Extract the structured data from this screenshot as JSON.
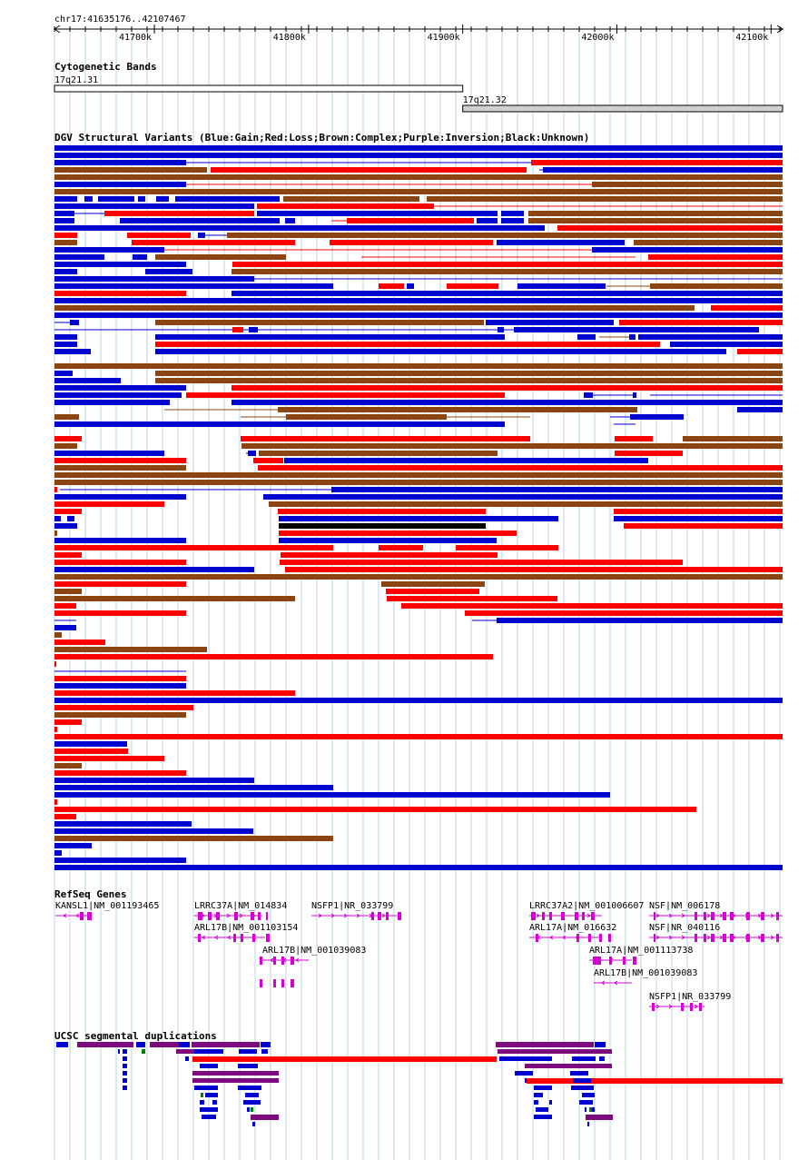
{
  "region": "chr17:41635176..42107467",
  "colors": {
    "blue": "#0000d0",
    "red": "#ff0000",
    "brown": "#8b4513",
    "purple": "#7d0b7d",
    "black": "#000000",
    "green": "#008000",
    "magenta": "#d400d4",
    "gridline": "#b8d6ea",
    "band_fill": "#d0d0d0"
  },
  "ruler": {
    "ticks": [
      {
        "pos": 41700000,
        "label": "41700k"
      },
      {
        "pos": 41800000,
        "label": "41800k"
      },
      {
        "pos": 41900000,
        "label": "41900k"
      },
      {
        "pos": 42000000,
        "label": "42000k"
      },
      {
        "pos": 42100000,
        "label": "42100k"
      }
    ]
  },
  "tracks": {
    "cytobands": {
      "title": "Cytogenetic Bands",
      "bands": [
        {
          "name": "17q21.31",
          "start": 41635176,
          "end": 41900000,
          "shade": "white"
        },
        {
          "name": "17q21.32",
          "start": 41900000,
          "end": 42107467,
          "shade": "gray"
        }
      ]
    },
    "dgv": {
      "title": "DGV Structural Variants (Blue:Gain;Red:Loss;Brown:Complex;Purple:Inversion;Black:Unknown)"
    },
    "refseq": {
      "title": "RefSeq Genes",
      "genes": [
        {
          "label": "KANSL1|NM_001193465",
          "start": 41636000,
          "end": 41660000,
          "row": 0,
          "strand": "-"
        },
        {
          "label": "LRRC37A|NM_014834",
          "start": 41726000,
          "end": 41770000,
          "row": 0,
          "strand": "+"
        },
        {
          "label": "NSFP1|NR_033799",
          "start": 41802000,
          "end": 41857000,
          "row": 0,
          "strand": "+"
        },
        {
          "label": "LRRC37A2|NM_001006607",
          "start": 41943000,
          "end": 41990000,
          "row": 0,
          "strand": "+"
        },
        {
          "label": "NSF|NM_006178",
          "start": 42021000,
          "end": 42107467,
          "row": 0,
          "strand": "+"
        },
        {
          "label": "ARL17B|NM_001103154",
          "start": 41726000,
          "end": 41772000,
          "row": 1,
          "strand": "-"
        },
        {
          "label": "ARL17A|NM_016632",
          "start": 41943000,
          "end": 41990000,
          "row": 1,
          "strand": "-"
        },
        {
          "label": "NSF|NR_040116",
          "start": 42021000,
          "end": 42107467,
          "row": 1,
          "strand": "+"
        },
        {
          "label": "ARL17B|NM_001039083",
          "start": 41770000,
          "end": 41800000,
          "row": 2,
          "strand": "-"
        },
        {
          "label": "ARL17A|NM_001113738",
          "start": 41982000,
          "end": 42010000,
          "row": 2,
          "strand": "-"
        },
        {
          "label": "ARL17B|NM_001039083",
          "start": 41985000,
          "end": 42010000,
          "row": 3,
          "strand": "-"
        },
        {
          "label": "NSFP1|NR_033799",
          "start": 42021000,
          "end": 42057000,
          "row": 4,
          "strand": "+"
        }
      ]
    },
    "segdups": {
      "title": "UCSC segmental duplications"
    }
  }
}
